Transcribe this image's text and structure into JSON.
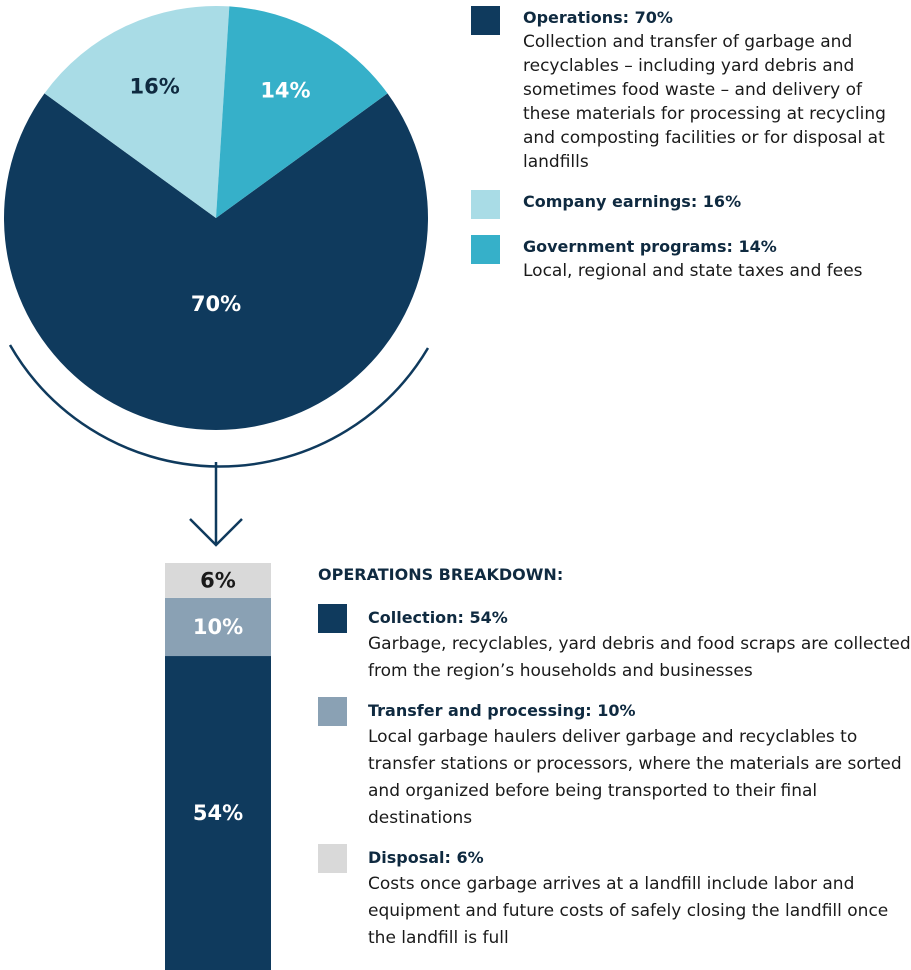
{
  "chart_data": [
    {
      "type": "pie",
      "categories": [
        "Operations: 70%",
        "Company earnings: 16%",
        "Government programs: 14%"
      ],
      "descriptions": [
        "Collection and transfer of garbage and recyclables – including yard debris and sometimes food waste – and delivery of these materials for processing at recycling and composting facilities or for disposal at landfills",
        null,
        "Local, regional and state taxes and fees"
      ],
      "values": [
        70,
        16,
        14
      ],
      "value_labels": [
        "70%",
        "16%",
        "14%"
      ],
      "colors": [
        "#0f3a5d",
        "#a9dce6",
        "#36b0c9"
      ]
    },
    {
      "type": "stacked_bar",
      "title": "OPERATIONS BREAKDOWN:",
      "series": [
        {
          "name": "Collection: 54%",
          "color": "#0f3a5d",
          "values": [
            54
          ],
          "value_labels": [
            "54%"
          ],
          "description": "Garbage, recyclables, yard debris and food scraps are collected from the region’s households and businesses"
        },
        {
          "name": "Transfer and processing: 10%",
          "color": "#8aa1b4",
          "values": [
            10
          ],
          "value_labels": [
            "10%"
          ],
          "description": "Local garbage haulers deliver garbage and recyclables to transfer stations or processors, where the materials are sorted and organized before being transported to their final destinations"
        },
        {
          "name": "Disposal: 6%",
          "color": "#d9d9d9",
          "values": [
            6
          ],
          "value_labels": [
            "6%"
          ],
          "description": "Costs once garbage arrives at a landfill include labor and equipment and future costs of safely closing the landfill once the landfill is full"
        }
      ]
    }
  ]
}
